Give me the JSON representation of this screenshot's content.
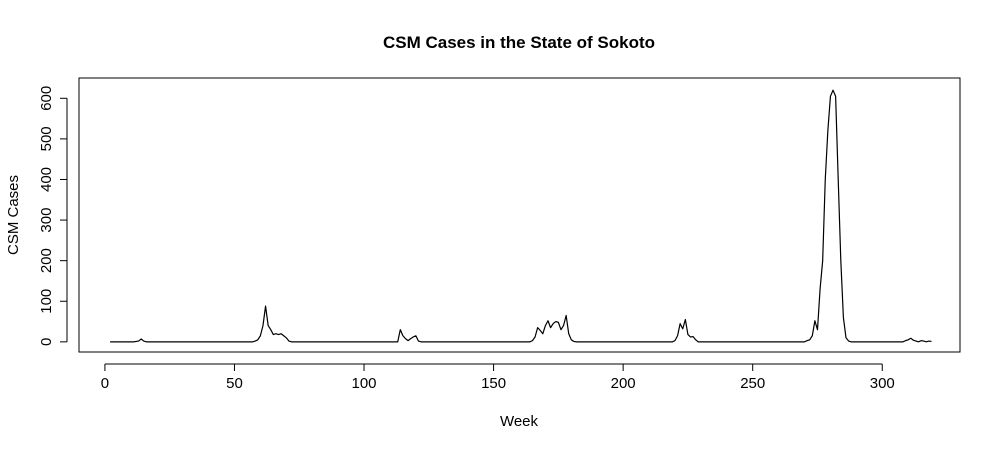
{
  "chart_data": {
    "type": "line",
    "title": "CSM Cases in the State of Sokoto",
    "xlabel": "Week",
    "ylabel": "CSM Cases",
    "xlim": [
      -10,
      330
    ],
    "ylim": [
      -25,
      650
    ],
    "xticks": [
      0,
      50,
      100,
      150,
      200,
      250,
      300
    ],
    "yticks": [
      0,
      100,
      200,
      300,
      400,
      500,
      600
    ],
    "grid": false,
    "line_color": "#000000",
    "series": [
      {
        "points": [
          [
            2,
            0
          ],
          [
            5,
            0
          ],
          [
            8,
            0
          ],
          [
            11,
            0
          ],
          [
            13,
            2
          ],
          [
            14,
            7
          ],
          [
            15,
            2
          ],
          [
            16,
            0
          ],
          [
            20,
            0
          ],
          [
            30,
            0
          ],
          [
            40,
            0
          ],
          [
            50,
            0
          ],
          [
            57,
            0
          ],
          [
            58,
            2
          ],
          [
            59,
            5
          ],
          [
            60,
            15
          ],
          [
            61,
            40
          ],
          [
            62,
            88
          ],
          [
            63,
            40
          ],
          [
            64,
            30
          ],
          [
            65,
            18
          ],
          [
            66,
            20
          ],
          [
            67,
            18
          ],
          [
            68,
            20
          ],
          [
            69,
            15
          ],
          [
            70,
            10
          ],
          [
            71,
            2
          ],
          [
            72,
            0
          ],
          [
            80,
            0
          ],
          [
            90,
            0
          ],
          [
            100,
            0
          ],
          [
            110,
            0
          ],
          [
            113,
            0
          ],
          [
            114,
            30
          ],
          [
            115,
            15
          ],
          [
            116,
            8
          ],
          [
            117,
            3
          ],
          [
            118,
            8
          ],
          [
            119,
            12
          ],
          [
            120,
            15
          ],
          [
            121,
            2
          ],
          [
            122,
            0
          ],
          [
            130,
            0
          ],
          [
            140,
            0
          ],
          [
            150,
            0
          ],
          [
            160,
            0
          ],
          [
            164,
            0
          ],
          [
            165,
            3
          ],
          [
            166,
            12
          ],
          [
            167,
            35
          ],
          [
            168,
            28
          ],
          [
            169,
            20
          ],
          [
            170,
            40
          ],
          [
            171,
            52
          ],
          [
            172,
            35
          ],
          [
            173,
            45
          ],
          [
            174,
            50
          ],
          [
            175,
            48
          ],
          [
            176,
            30
          ],
          [
            177,
            40
          ],
          [
            178,
            65
          ],
          [
            179,
            20
          ],
          [
            180,
            5
          ],
          [
            181,
            1
          ],
          [
            182,
            0
          ],
          [
            190,
            0
          ],
          [
            200,
            0
          ],
          [
            210,
            0
          ],
          [
            219,
            0
          ],
          [
            220,
            3
          ],
          [
            221,
            15
          ],
          [
            222,
            45
          ],
          [
            223,
            32
          ],
          [
            224,
            55
          ],
          [
            225,
            18
          ],
          [
            226,
            12
          ],
          [
            227,
            13
          ],
          [
            228,
            5
          ],
          [
            229,
            0
          ],
          [
            240,
            0
          ],
          [
            250,
            0
          ],
          [
            260,
            0
          ],
          [
            270,
            0
          ],
          [
            271,
            3
          ],
          [
            272,
            5
          ],
          [
            273,
            15
          ],
          [
            274,
            52
          ],
          [
            275,
            30
          ],
          [
            276,
            130
          ],
          [
            277,
            200
          ],
          [
            278,
            400
          ],
          [
            279,
            520
          ],
          [
            280,
            605
          ],
          [
            281,
            620
          ],
          [
            282,
            605
          ],
          [
            283,
            400
          ],
          [
            284,
            200
          ],
          [
            285,
            60
          ],
          [
            286,
            10
          ],
          [
            287,
            2
          ],
          [
            288,
            0
          ],
          [
            295,
            0
          ],
          [
            300,
            0
          ],
          [
            308,
            0
          ],
          [
            309,
            3
          ],
          [
            310,
            5
          ],
          [
            311,
            9
          ],
          [
            312,
            4
          ],
          [
            313,
            2
          ],
          [
            314,
            0
          ],
          [
            315,
            3
          ],
          [
            316,
            2
          ],
          [
            317,
            0
          ],
          [
            318,
            2
          ],
          [
            319,
            1
          ]
        ]
      }
    ]
  }
}
